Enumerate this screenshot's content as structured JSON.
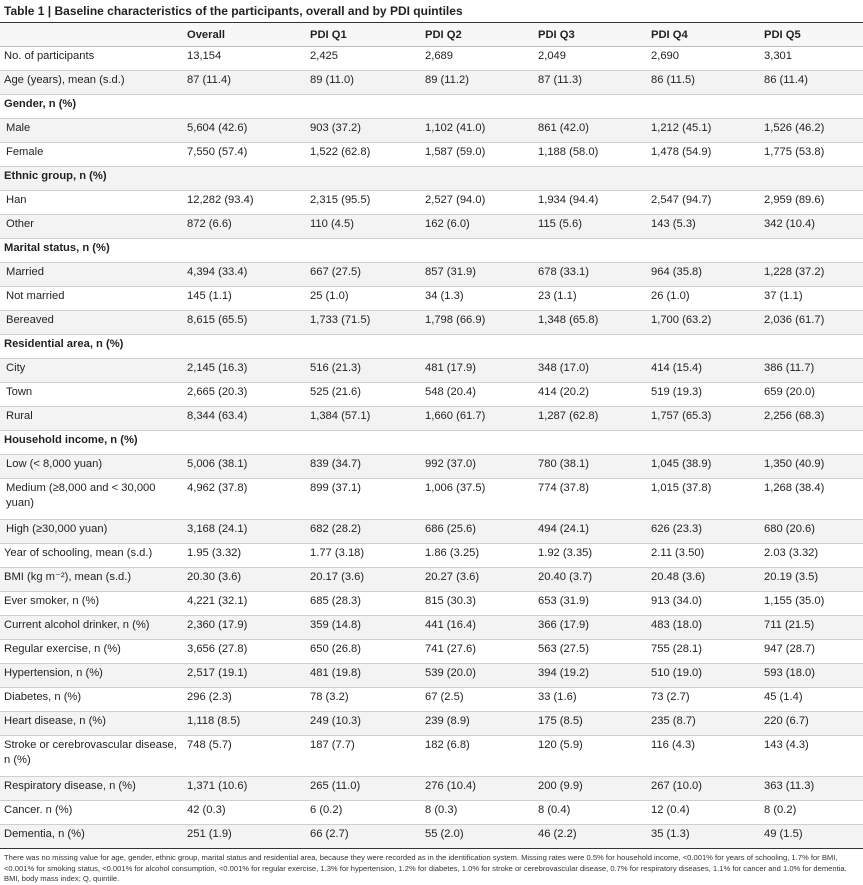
{
  "table": {
    "title": "Table 1 | Baseline characteristics of the participants, overall and by PDI quintiles",
    "headers": [
      "",
      "Overall",
      "PDI Q1",
      "PDI Q2",
      "PDI Q3",
      "PDI Q4",
      "PDI Q5"
    ],
    "rows": [
      {
        "label": "No. of participants",
        "type": "data",
        "values": [
          "13,154",
          "2,425",
          "2,689",
          "2,049",
          "2,690",
          "3,301"
        ]
      },
      {
        "label": "Age (years), mean (s.d.)",
        "type": "data",
        "values": [
          "87 (11.4)",
          "89 (11.0)",
          "89 (11.2)",
          "87 (11.3)",
          "86 (11.5)",
          "86 (11.4)"
        ]
      },
      {
        "label": "Gender, n (%)",
        "type": "section",
        "values": [
          "",
          "",
          "",
          "",
          "",
          ""
        ]
      },
      {
        "label": "Male",
        "type": "sub",
        "values": [
          "5,604 (42.6)",
          "903 (37.2)",
          "1,102 (41.0)",
          "861 (42.0)",
          "1,212 (45.1)",
          "1,526 (46.2)"
        ]
      },
      {
        "label": "Female",
        "type": "sub",
        "values": [
          "7,550 (57.4)",
          "1,522 (62.8)",
          "1,587 (59.0)",
          "1,188 (58.0)",
          "1,478 (54.9)",
          "1,775 (53.8)"
        ]
      },
      {
        "label": "Ethnic group, n (%)",
        "type": "section",
        "values": [
          "",
          "",
          "",
          "",
          "",
          ""
        ]
      },
      {
        "label": "Han",
        "type": "sub",
        "values": [
          "12,282 (93.4)",
          "2,315 (95.5)",
          "2,527 (94.0)",
          "1,934 (94.4)",
          "2,547 (94.7)",
          "2,959 (89.6)"
        ]
      },
      {
        "label": "Other",
        "type": "sub",
        "values": [
          "872 (6.6)",
          "110 (4.5)",
          "162 (6.0)",
          "115 (5.6)",
          "143 (5.3)",
          "342 (10.4)"
        ]
      },
      {
        "label": "Marital status, n (%)",
        "type": "section",
        "values": [
          "",
          "",
          "",
          "",
          "",
          ""
        ]
      },
      {
        "label": "Married",
        "type": "sub",
        "values": [
          "4,394 (33.4)",
          "667 (27.5)",
          "857 (31.9)",
          "678 (33.1)",
          "964 (35.8)",
          "1,228 (37.2)"
        ]
      },
      {
        "label": "Not married",
        "type": "sub",
        "values": [
          "145 (1.1)",
          "25 (1.0)",
          "34 (1.3)",
          "23 (1.1)",
          "26 (1.0)",
          "37 (1.1)"
        ]
      },
      {
        "label": "Bereaved",
        "type": "sub",
        "values": [
          "8,615 (65.5)",
          "1,733 (71.5)",
          "1,798 (66.9)",
          "1,348 (65.8)",
          "1,700 (63.2)",
          "2,036 (61.7)"
        ]
      },
      {
        "label": "Residential area, n (%)",
        "type": "section",
        "values": [
          "",
          "",
          "",
          "",
          "",
          ""
        ]
      },
      {
        "label": "City",
        "type": "sub",
        "values": [
          "2,145 (16.3)",
          "516 (21.3)",
          "481 (17.9)",
          "348 (17.0)",
          "414 (15.4)",
          "386 (11.7)"
        ]
      },
      {
        "label": "Town",
        "type": "sub",
        "values": [
          "2,665 (20.3)",
          "525 (21.6)",
          "548 (20.4)",
          "414 (20.2)",
          "519 (19.3)",
          "659 (20.0)"
        ]
      },
      {
        "label": "Rural",
        "type": "sub",
        "values": [
          "8,344 (63.4)",
          "1,384 (57.1)",
          "1,660 (61.7)",
          "1,287 (62.8)",
          "1,757 (65.3)",
          "2,256 (68.3)"
        ]
      },
      {
        "label": "Household income, n (%)",
        "type": "section",
        "values": [
          "",
          "",
          "",
          "",
          "",
          ""
        ]
      },
      {
        "label": "Low (< 8,000 yuan)",
        "type": "sub",
        "values": [
          "5,006 (38.1)",
          "839 (34.7)",
          "992 (37.0)",
          "780 (38.1)",
          "1,045 (38.9)",
          "1,350 (40.9)"
        ]
      },
      {
        "label": "Medium (≥8,000 and < 30,000 yuan)",
        "type": "sub tall",
        "values": [
          "4,962 (37.8)",
          "899 (37.1)",
          "1,006 (37.5)",
          "774 (37.8)",
          "1,015 (37.8)",
          "1,268 (38.4)"
        ]
      },
      {
        "label": "High (≥30,000 yuan)",
        "type": "sub",
        "values": [
          "3,168 (24.1)",
          "682 (28.2)",
          "686 (25.6)",
          "494 (24.1)",
          "626 (23.3)",
          "680 (20.6)"
        ]
      },
      {
        "label": "Year of schooling, mean (s.d.)",
        "type": "data",
        "values": [
          "1.95 (3.32)",
          "1.77 (3.18)",
          "1.86 (3.25)",
          "1.92 (3.35)",
          "2.11 (3.50)",
          "2.03 (3.32)"
        ]
      },
      {
        "label": "BMI (kg m⁻²), mean (s.d.)",
        "type": "data",
        "values": [
          "20.30 (3.6)",
          "20.17 (3.6)",
          "20.27 (3.6)",
          "20.40 (3.7)",
          "20.48 (3.6)",
          "20.19 (3.5)"
        ]
      },
      {
        "label": "Ever smoker, n (%)",
        "type": "data",
        "values": [
          "4,221 (32.1)",
          "685 (28.3)",
          "815 (30.3)",
          "653 (31.9)",
          "913 (34.0)",
          "1,155 (35.0)"
        ]
      },
      {
        "label": "Current alcohol drinker, n (%)",
        "type": "data",
        "values": [
          "2,360 (17.9)",
          "359 (14.8)",
          "441 (16.4)",
          "366 (17.9)",
          "483 (18.0)",
          "711 (21.5)"
        ]
      },
      {
        "label": "Regular exercise, n (%)",
        "type": "data",
        "values": [
          "3,656 (27.8)",
          "650 (26.8)",
          "741 (27.6)",
          "563 (27.5)",
          "755 (28.1)",
          "947 (28.7)"
        ]
      },
      {
        "label": "Hypertension, n (%)",
        "type": "data",
        "values": [
          "2,517 (19.1)",
          "481 (19.8)",
          "539 (20.0)",
          "394 (19.2)",
          "510 (19.0)",
          "593 (18.0)"
        ]
      },
      {
        "label": "Diabetes, n (%)",
        "type": "data",
        "values": [
          "296 (2.3)",
          "78 (3.2)",
          "67 (2.5)",
          "33 (1.6)",
          "73 (2.7)",
          "45 (1.4)"
        ]
      },
      {
        "label": "Heart disease, n (%)",
        "type": "data",
        "values": [
          "1,118 (8.5)",
          "249 (10.3)",
          "239 (8.9)",
          "175 (8.5)",
          "235 (8.7)",
          "220 (6.7)"
        ]
      },
      {
        "label": "Stroke or cerebrovascular disease, n (%)",
        "type": "data tall",
        "values": [
          "748 (5.7)",
          "187 (7.7)",
          "182 (6.8)",
          "120 (5.9)",
          "116 (4.3)",
          "143 (4.3)"
        ]
      },
      {
        "label": "Respiratory disease, n (%)",
        "type": "data",
        "values": [
          "1,371 (10.6)",
          "265 (11.0)",
          "276 (10.4)",
          "200 (9.9)",
          "267 (10.0)",
          "363 (11.3)"
        ]
      },
      {
        "label": "Cancer. n (%)",
        "type": "data",
        "values": [
          "42 (0.3)",
          "6 (0.2)",
          "8 (0.3)",
          "8 (0.4)",
          "12 (0.4)",
          "8 (0.2)"
        ]
      },
      {
        "label": "Dementia, n (%)",
        "type": "data",
        "values": [
          "251 (1.9)",
          "66 (2.7)",
          "55 (2.0)",
          "46 (2.2)",
          "35 (1.3)",
          "49 (1.5)"
        ]
      }
    ],
    "footnote": "There was no missing value for age, gender, ethnic group, marital status and residential area, because they were recorded as in the identification system. Missing rates were 0.5% for household income, <0.001% for years of schooling, 1.7% for BMI, <0.001% for smoking status, <0.001% for alcohol consumption, <0.001% for regular exercise, 1.3% for hypertension, 1.2% for diabetes, 1.0% for stroke or cerebrovascular disease, 0.7% for respiratory diseases, 1.1% for cancer and 1.0% for dementia. BMI, body mass index; Q, quintile."
  }
}
